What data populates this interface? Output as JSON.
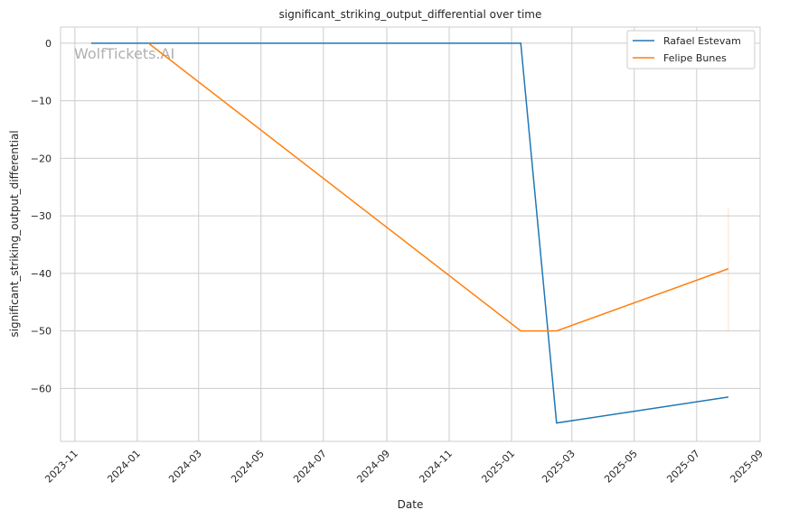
{
  "chart_data": {
    "type": "line",
    "title": "significant_striking_output_differential over time",
    "xlabel": "Date",
    "ylabel": "significant_striking_output_differential",
    "watermark": "WolfTickets.AI",
    "xlim": [
      "2023-10-18",
      "2025-09-01"
    ],
    "ylim": [
      -69.2,
      2.8
    ],
    "grid": true,
    "legend_position": "top-right",
    "x_ticks": [
      "2023-11",
      "2024-01",
      "2024-03",
      "2024-05",
      "2024-07",
      "2024-09",
      "2024-11",
      "2025-01",
      "2025-03",
      "2025-05",
      "2025-07",
      "2025-09"
    ],
    "y_ticks": [
      0,
      -10,
      -20,
      -30,
      -40,
      -50,
      -60
    ],
    "y_tick_labels": [
      "0",
      "−10",
      "−20",
      "−30",
      "−40",
      "−50",
      "−60"
    ],
    "series": [
      {
        "name": "Rafael Estevam",
        "color": "#1f77b4",
        "x": [
          "2023-11-17",
          "2025-01-10",
          "2025-02-14",
          "2025-08-01"
        ],
        "y": [
          0,
          0,
          -66,
          -61.5
        ]
      },
      {
        "name": "Felipe Bunes",
        "color": "#ff7f0e",
        "x": [
          "2024-01-12",
          "2025-01-10",
          "2025-02-14",
          "2025-08-01"
        ],
        "y": [
          0,
          -50,
          -50,
          -39.2
        ],
        "band": {
          "x": "2025-08-01",
          "y": [
            -50,
            -28.6
          ]
        }
      }
    ]
  }
}
